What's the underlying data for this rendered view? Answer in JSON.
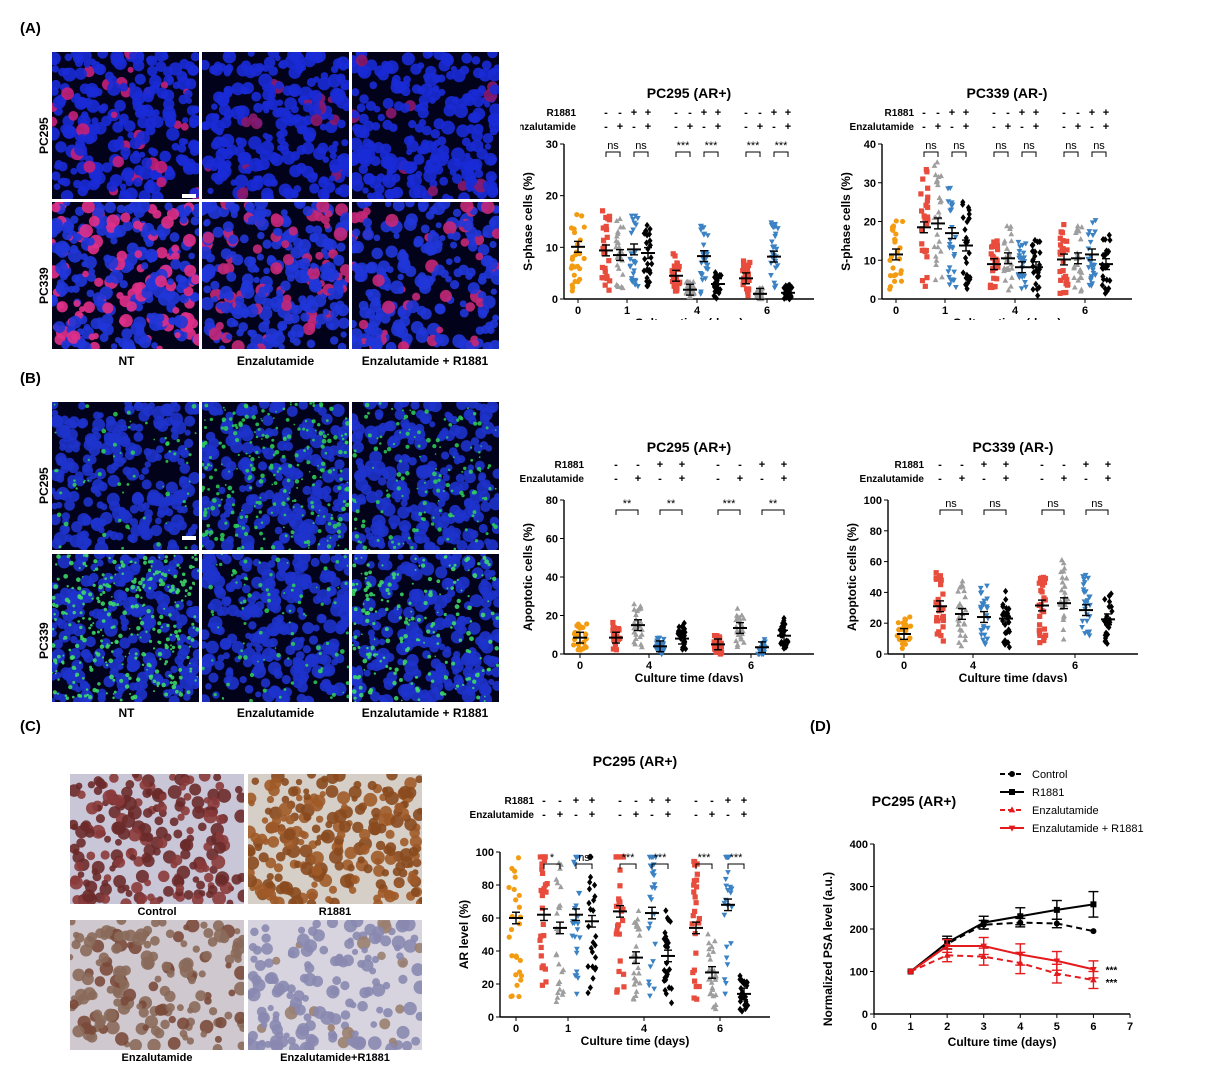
{
  "panels": {
    "A": {
      "label": "(A)",
      "image_rows": [
        "PC295",
        "PC339"
      ],
      "image_cols": [
        "NT",
        "Enzalutamide",
        "Enzalutamide + R1881"
      ]
    },
    "B": {
      "label": "(B)",
      "image_rows": [
        "PC295",
        "PC339"
      ],
      "image_cols": [
        "NT",
        "Enzalutamide",
        "Enzalutamide + R1881"
      ]
    },
    "C": {
      "label": "(C)",
      "image_captions": [
        "Control",
        "R1881",
        "Enzalutamide",
        "Enzalutamide+R1881"
      ]
    },
    "D": {
      "label": "(D)"
    }
  },
  "treatment_row_labels": {
    "r1881": "R1881",
    "enza": "Enzalutamide"
  },
  "colors": {
    "nt": "#f39c12",
    "r1881": "#e74c3c",
    "enza_gray": "#9e9e9e",
    "enza_r1881_blue": "#3b82c4",
    "black": "#000000",
    "red_line": "#e41a1c"
  },
  "chart_data": [
    {
      "id": "A_PC295",
      "type": "scatter",
      "title": "PC295 (AR+)",
      "ylabel": "S-phase cells (%)",
      "xlabel": "Culture time (days)",
      "ylim": [
        0,
        30
      ],
      "yticks": [
        0,
        10,
        20,
        30
      ],
      "days": [
        "0",
        "1",
        "4",
        "6"
      ],
      "signs": {
        "r1881": [
          "-",
          "-",
          "+",
          "+"
        ],
        "enza": [
          "-",
          "+",
          "-",
          "+"
        ]
      },
      "groups": [
        {
          "day": "0",
          "cond": "nt",
          "mean": 10.1
        },
        {
          "day": "1",
          "cond": "c",
          "mean": 9.4
        },
        {
          "day": "1",
          "cond": "e",
          "mean": 8.5
        },
        {
          "day": "1",
          "cond": "r",
          "mean": 9.6
        },
        {
          "day": "1",
          "cond": "er",
          "mean": 8.9
        },
        {
          "day": "4",
          "cond": "c",
          "mean": 4.5
        },
        {
          "day": "4",
          "cond": "e",
          "mean": 1.8
        },
        {
          "day": "4",
          "cond": "r",
          "mean": 8.3
        },
        {
          "day": "4",
          "cond": "er",
          "mean": 2.9
        },
        {
          "day": "6",
          "cond": "c",
          "mean": 4.0
        },
        {
          "day": "6",
          "cond": "e",
          "mean": 1.0
        },
        {
          "day": "6",
          "cond": "r",
          "mean": 8.2
        },
        {
          "day": "6",
          "cond": "er",
          "mean": 1.2
        }
      ],
      "significance": [
        {
          "day": "1",
          "pair": "ce",
          "label": "ns"
        },
        {
          "day": "1",
          "pair": "rer",
          "label": "ns"
        },
        {
          "day": "4",
          "pair": "ce",
          "label": "***"
        },
        {
          "day": "4",
          "pair": "rer",
          "label": "***"
        },
        {
          "day": "6",
          "pair": "ce",
          "label": "***"
        },
        {
          "day": "6",
          "pair": "rer",
          "label": "***"
        }
      ]
    },
    {
      "id": "A_PC339",
      "type": "scatter",
      "title": "PC339 (AR-)",
      "ylabel": "S-phase cells (%)",
      "xlabel": "Culture time (days)",
      "ylim": [
        0,
        40
      ],
      "yticks": [
        0,
        10,
        20,
        30,
        40
      ],
      "days": [
        "0",
        "1",
        "4",
        "6"
      ],
      "signs": {
        "r1881": [
          "-",
          "-",
          "+",
          "+"
        ],
        "enza": [
          "-",
          "+",
          "-",
          "+"
        ]
      },
      "groups": [
        {
          "day": "0",
          "cond": "nt",
          "mean": 11.5
        },
        {
          "day": "1",
          "cond": "c",
          "mean": 18.5
        },
        {
          "day": "1",
          "cond": "e",
          "mean": 19.5
        },
        {
          "day": "1",
          "cond": "r",
          "mean": 17.0
        },
        {
          "day": "1",
          "cond": "er",
          "mean": 13.8
        },
        {
          "day": "4",
          "cond": "c",
          "mean": 9.0
        },
        {
          "day": "4",
          "cond": "e",
          "mean": 10.5
        },
        {
          "day": "4",
          "cond": "r",
          "mean": 8.2
        },
        {
          "day": "4",
          "cond": "er",
          "mean": 8.2
        },
        {
          "day": "6",
          "cond": "c",
          "mean": 10.2
        },
        {
          "day": "6",
          "cond": "e",
          "mean": 10.5
        },
        {
          "day": "6",
          "cond": "r",
          "mean": 11.5
        },
        {
          "day": "6",
          "cond": "er",
          "mean": 9.0
        }
      ],
      "significance": [
        {
          "day": "1",
          "pair": "ce",
          "label": "ns"
        },
        {
          "day": "1",
          "pair": "rer",
          "label": "ns"
        },
        {
          "day": "4",
          "pair": "ce",
          "label": "ns"
        },
        {
          "day": "4",
          "pair": "rer",
          "label": "ns"
        },
        {
          "day": "6",
          "pair": "ce",
          "label": "ns"
        },
        {
          "day": "6",
          "pair": "rer",
          "label": "ns"
        }
      ]
    },
    {
      "id": "B_PC295",
      "type": "scatter",
      "title": "PC295 (AR+)",
      "ylabel": "Apoptotic cells (%)",
      "xlabel": "Culture time (days)",
      "ylim": [
        0,
        80
      ],
      "yticks": [
        0,
        20,
        40,
        60,
        80
      ],
      "days": [
        "0",
        "4",
        "6"
      ],
      "signs": {
        "r1881": [
          "-",
          "-",
          "+",
          "+"
        ],
        "enza": [
          "-",
          "+",
          "-",
          "+"
        ]
      },
      "groups": [
        {
          "day": "0",
          "cond": "nt",
          "mean": 8.5
        },
        {
          "day": "4",
          "cond": "c",
          "mean": 8.5
        },
        {
          "day": "4",
          "cond": "e",
          "mean": 15.0
        },
        {
          "day": "4",
          "cond": "r",
          "mean": 4.0
        },
        {
          "day": "4",
          "cond": "er",
          "mean": 8.0
        },
        {
          "day": "6",
          "cond": "c",
          "mean": 5.0
        },
        {
          "day": "6",
          "cond": "e",
          "mean": 13.5
        },
        {
          "day": "6",
          "cond": "r",
          "mean": 3.5
        },
        {
          "day": "6",
          "cond": "er",
          "mean": 9.5
        }
      ],
      "significance": [
        {
          "day": "4",
          "pair": "ce",
          "label": "**"
        },
        {
          "day": "4",
          "pair": "rer",
          "label": "**"
        },
        {
          "day": "6",
          "pair": "ce",
          "label": "***"
        },
        {
          "day": "6",
          "pair": "rer",
          "label": "**"
        }
      ]
    },
    {
      "id": "B_PC339",
      "type": "scatter",
      "title": "PC339 (AR-)",
      "ylabel": "Apoptotic cells (%)",
      "xlabel": "Culture time (days)",
      "ylim": [
        0,
        100
      ],
      "yticks": [
        0,
        20,
        40,
        60,
        80,
        100
      ],
      "days": [
        "0",
        "4",
        "6"
      ],
      "signs": {
        "r1881": [
          "-",
          "-",
          "+",
          "+"
        ],
        "enza": [
          "-",
          "+",
          "-",
          "+"
        ]
      },
      "groups": [
        {
          "day": "0",
          "cond": "nt",
          "mean": 13.0
        },
        {
          "day": "4",
          "cond": "c",
          "mean": 31.0
        },
        {
          "day": "4",
          "cond": "e",
          "mean": 26.0
        },
        {
          "day": "4",
          "cond": "r",
          "mean": 24.0
        },
        {
          "day": "4",
          "cond": "er",
          "mean": 23.0
        },
        {
          "day": "6",
          "cond": "c",
          "mean": 31.5
        },
        {
          "day": "6",
          "cond": "e",
          "mean": 33.0
        },
        {
          "day": "6",
          "cond": "r",
          "mean": 28.5
        },
        {
          "day": "6",
          "cond": "er",
          "mean": 22.5
        }
      ],
      "significance": [
        {
          "day": "4",
          "pair": "ce",
          "label": "ns"
        },
        {
          "day": "4",
          "pair": "rer",
          "label": "ns"
        },
        {
          "day": "6",
          "pair": "ce",
          "label": "ns"
        },
        {
          "day": "6",
          "pair": "rer",
          "label": "ns"
        }
      ]
    },
    {
      "id": "C_PC295",
      "type": "scatter",
      "title": "PC295 (AR+)",
      "ylabel": "AR level (%)",
      "xlabel": "Culture time (days)",
      "ylim": [
        0,
        100
      ],
      "yticks": [
        0,
        20,
        40,
        60,
        80,
        100
      ],
      "days": [
        "0",
        "1",
        "4",
        "6"
      ],
      "signs": {
        "r1881": [
          "-",
          "-",
          "+",
          "+"
        ],
        "enza": [
          "-",
          "+",
          "-",
          "+"
        ]
      },
      "groups": [
        {
          "day": "0",
          "cond": "nt",
          "mean": 60.0
        },
        {
          "day": "1",
          "cond": "c",
          "mean": 62.0
        },
        {
          "day": "1",
          "cond": "e",
          "mean": 54.0
        },
        {
          "day": "1",
          "cond": "r",
          "mean": 62.0
        },
        {
          "day": "1",
          "cond": "er",
          "mean": 58.0
        },
        {
          "day": "4",
          "cond": "c",
          "mean": 64.0
        },
        {
          "day": "4",
          "cond": "e",
          "mean": 36.0
        },
        {
          "day": "4",
          "cond": "r",
          "mean": 63.0
        },
        {
          "day": "4",
          "cond": "er",
          "mean": 37.0
        },
        {
          "day": "6",
          "cond": "c",
          "mean": 54.0
        },
        {
          "day": "6",
          "cond": "e",
          "mean": 27.0
        },
        {
          "day": "6",
          "cond": "r",
          "mean": 68.0
        },
        {
          "day": "6",
          "cond": "er",
          "mean": 14.0
        }
      ],
      "significance": [
        {
          "day": "1",
          "pair": "ce",
          "label": "*"
        },
        {
          "day": "1",
          "pair": "rer",
          "label": "ns"
        },
        {
          "day": "4",
          "pair": "ce",
          "label": "***"
        },
        {
          "day": "4",
          "pair": "rer",
          "label": "***"
        },
        {
          "day": "6",
          "pair": "ce",
          "label": "***"
        },
        {
          "day": "6",
          "pair": "rer",
          "label": "***"
        }
      ]
    },
    {
      "id": "D_PC295",
      "type": "line",
      "title": "PC295 (AR+)",
      "ylabel": "Normalized PSA level (a.u.)",
      "xlabel": "Culture time (days)",
      "xlim": [
        0,
        7
      ],
      "xticks": [
        0,
        1,
        2,
        3,
        4,
        5,
        6,
        7
      ],
      "ylim": [
        0,
        400
      ],
      "yticks": [
        0,
        100,
        200,
        300,
        400
      ],
      "series": [
        {
          "name": "Control",
          "x": [
            1,
            2,
            3,
            4,
            5,
            6
          ],
          "y": [
            100,
            165,
            210,
            215,
            213,
            195
          ],
          "err": [
            0,
            12,
            10,
            10,
            10,
            0
          ],
          "style": "dashed",
          "color": "#000000",
          "marker": "circle"
        },
        {
          "name": "R1881",
          "x": [
            1,
            2,
            3,
            4,
            5,
            6
          ],
          "y": [
            100,
            168,
            215,
            230,
            245,
            258
          ],
          "err": [
            0,
            15,
            15,
            20,
            22,
            30
          ],
          "style": "solid",
          "color": "#000000",
          "marker": "square"
        },
        {
          "name": "Enzalutamide",
          "x": [
            1,
            2,
            3,
            4,
            5,
            6
          ],
          "y": [
            100,
            138,
            135,
            120,
            95,
            80
          ],
          "err": [
            0,
            15,
            20,
            25,
            22,
            20
          ],
          "style": "dashed",
          "color": "#e41a1c",
          "marker": "triangle"
        },
        {
          "name": "Enzalutamide + R1881",
          "x": [
            1,
            2,
            3,
            4,
            5,
            6
          ],
          "y": [
            100,
            160,
            160,
            140,
            125,
            105
          ],
          "err": [
            0,
            15,
            20,
            25,
            22,
            20
          ],
          "style": "solid",
          "color": "#e41a1c",
          "marker": "tri-down"
        }
      ],
      "annotations": [
        "***",
        "***"
      ],
      "legend": "top-right"
    }
  ]
}
